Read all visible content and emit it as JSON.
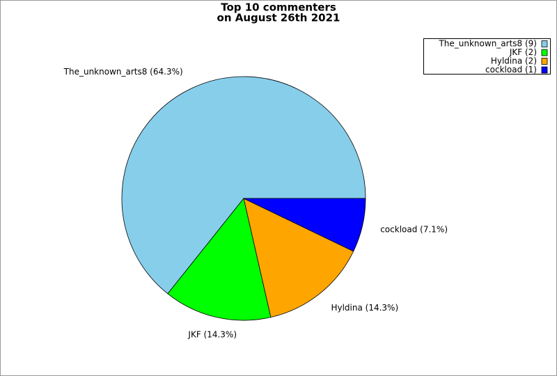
{
  "chart_data": {
    "type": "pie",
    "title": [
      "Top 10 commenters",
      "on August 26th 2021"
    ],
    "categories": [
      "The_unknown_arts8",
      "JKF",
      "Hyldina",
      "cockload"
    ],
    "values": [
      9,
      2,
      2,
      1
    ],
    "value_labels": [
      "The_unknown_arts8 (64.3%)",
      "JKF (14.3%)",
      "Hyldina (14.3%)",
      "cockload (7.1%)"
    ],
    "legend_labels": [
      "The_unknown_arts8 (9)",
      "JKF (2)",
      "Hyldina (2)",
      "cockload (1)"
    ],
    "colors": [
      "#87ceeb",
      "#00ff00",
      "#ffa500",
      "#0000ff"
    ],
    "legend": "upper right"
  }
}
